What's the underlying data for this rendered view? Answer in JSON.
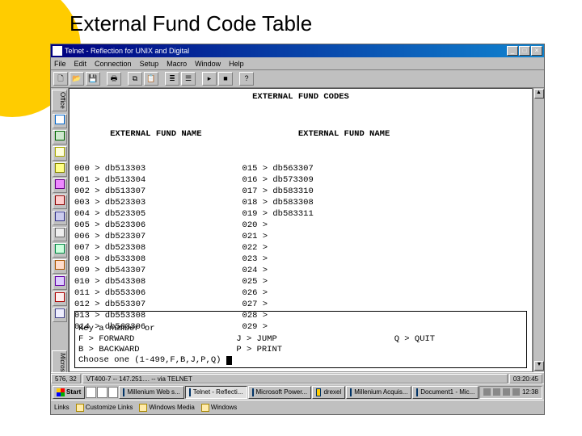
{
  "slide": {
    "title": "External Fund Code Table"
  },
  "window": {
    "title": "Telnet - Reflection for UNIX and Digital",
    "menu": [
      "File",
      "Edit",
      "Connection",
      "Setup",
      "Macro",
      "Window",
      "Help"
    ]
  },
  "terminal": {
    "heading": "EXTERNAL FUND CODES",
    "col1_header": "EXTERNAL FUND NAME",
    "col2_header": "EXTERNAL FUND NAME",
    "left": [
      {
        "n": "000",
        "v": "db513303"
      },
      {
        "n": "001",
        "v": "db513304"
      },
      {
        "n": "002",
        "v": "db513307"
      },
      {
        "n": "003",
        "v": "db523303"
      },
      {
        "n": "004",
        "v": "db523305"
      },
      {
        "n": "005",
        "v": "db523306"
      },
      {
        "n": "006",
        "v": "db523307"
      },
      {
        "n": "007",
        "v": "db523308"
      },
      {
        "n": "008",
        "v": "db533308"
      },
      {
        "n": "009",
        "v": "db543307"
      },
      {
        "n": "010",
        "v": "db543308"
      },
      {
        "n": "011",
        "v": "db553306"
      },
      {
        "n": "012",
        "v": "db553307"
      },
      {
        "n": "013",
        "v": "db553308"
      },
      {
        "n": "014",
        "v": "db563306"
      }
    ],
    "right": [
      {
        "n": "015",
        "v": "db563307"
      },
      {
        "n": "016",
        "v": "db573309"
      },
      {
        "n": "017",
        "v": "db583310"
      },
      {
        "n": "018",
        "v": "db583308"
      },
      {
        "n": "019",
        "v": "db583311"
      },
      {
        "n": "020",
        "v": ""
      },
      {
        "n": "021",
        "v": ""
      },
      {
        "n": "022",
        "v": ""
      },
      {
        "n": "023",
        "v": ""
      },
      {
        "n": "024",
        "v": ""
      },
      {
        "n": "025",
        "v": ""
      },
      {
        "n": "026",
        "v": ""
      },
      {
        "n": "027",
        "v": ""
      },
      {
        "n": "028",
        "v": ""
      },
      {
        "n": "029",
        "v": ""
      }
    ],
    "cmd": {
      "l1": "Key a number or",
      "l2a": "F > FORWARD",
      "l2b": "J > JUMP",
      "l2c": "Q > QUIT",
      "l3a": "B > BACKWARD",
      "l3b": "P > PRINT",
      "l4": "Choose one (1-499,F,B,J,P,Q)"
    }
  },
  "status": {
    "left": "576, 32",
    "mid": "VT400-7 -- 147.251.... -- via TELNET",
    "right": "03:20:45"
  },
  "taskbar": {
    "start": "Start",
    "items": [
      "Millenium Web s...",
      "Telnet - Reflecti...",
      "Microsoft Power...",
      "drexel",
      "Millenium Acquis...",
      "Document1 - Mic..."
    ],
    "clock": "12:38"
  },
  "leftlabels": {
    "top": "Office",
    "bottom": "Microsoft"
  },
  "links": {
    "label": "Links",
    "items": [
      "Customize Links",
      "Windows Media",
      "Windows"
    ]
  }
}
